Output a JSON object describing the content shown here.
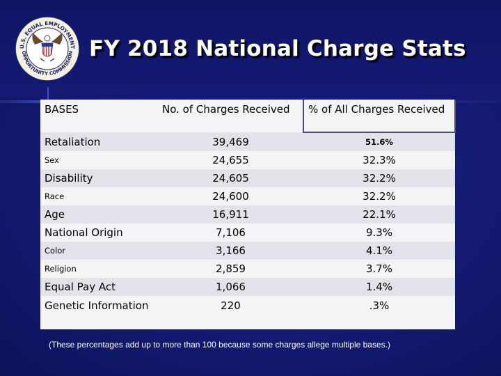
{
  "title": "FY 2018 National Charge Stats",
  "seal": {
    "arc_top": "U.S. EQUAL EMPLOYMENT",
    "arc_bottom": "OPPORTUNITY COMMISSION"
  },
  "table": {
    "headers": [
      "BASES",
      "No. of Charges Received",
      "% of All Charges Received"
    ],
    "rows": [
      {
        "basis": "Retaliation",
        "count": "39,469",
        "percent": "51.6%"
      },
      {
        "basis": "Sex",
        "count": "24,655",
        "percent": "32.3%"
      },
      {
        "basis": "Disability",
        "count": "24,605",
        "percent": "32.2%"
      },
      {
        "basis": "Race",
        "count": "24,600",
        "percent": "32.2%"
      },
      {
        "basis": "Age",
        "count": "16,911",
        "percent": "22.1%"
      },
      {
        "basis": "National Origin",
        "count": "7,106",
        "percent": "9.3%"
      },
      {
        "basis": "Color",
        "count": "3,166",
        "percent": "4.1%"
      },
      {
        "basis": "Religion",
        "count": "2,859",
        "percent": "3.7%"
      },
      {
        "basis": "Equal Pay Act",
        "count": "1,066",
        "percent": "1.4%"
      },
      {
        "basis": "Genetic Information",
        "count": "220",
        "percent": ".3%"
      }
    ]
  },
  "footnote": "(These percentages add up to more than 100 because some charges allege multiple bases.)",
  "colors": {
    "background": "#141a72",
    "title_text": "#ffffff",
    "row_light": "#f4f4f6",
    "row_shade": "#e2e3ea"
  }
}
